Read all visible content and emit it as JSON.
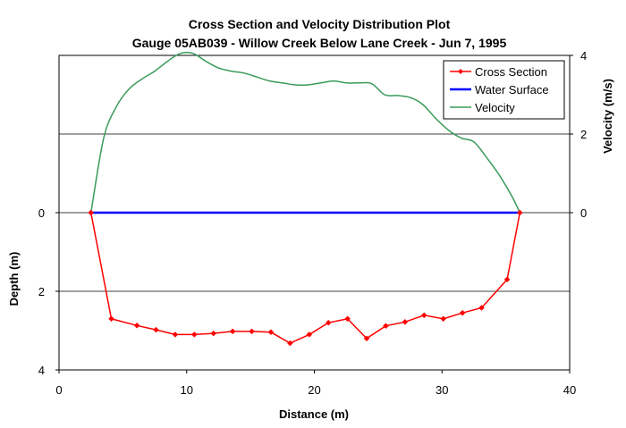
{
  "chart_data": {
    "type": "line",
    "title": "Cross Section and Velocity Distribution Plot",
    "subtitle": "Gauge 05AB039 - Willow Creek Below Lane Creek - Jun 7, 1995",
    "xlabel": "Distance (m)",
    "ylabel_left": "Depth (m)",
    "ylabel_right": "Velocity (m/s)",
    "xlim": [
      0,
      40
    ],
    "x_ticks": [
      "0",
      "10",
      "20",
      "30",
      "40"
    ],
    "depth_ticks": [
      "0",
      "2",
      "4"
    ],
    "velocity_ticks": [
      "4",
      "2",
      "0"
    ],
    "depth_range_at_velocity_zero": [
      0,
      4
    ],
    "velocity_range": [
      0,
      4
    ],
    "grid": true,
    "legend_position": "top-right",
    "series": [
      {
        "name": "Cross Section",
        "color": "#ff0000",
        "axis": "depth",
        "marker": "diamond",
        "x": [
          2.5,
          4.1,
          6.1,
          7.6,
          9.1,
          10.6,
          12.1,
          13.6,
          15.1,
          16.6,
          18.1,
          19.6,
          21.1,
          22.6,
          24.1,
          25.6,
          27.1,
          28.6,
          30.1,
          31.6,
          33.1,
          35.1,
          36.1
        ],
        "y": [
          0,
          2.7,
          2.87,
          2.98,
          3.1,
          3.1,
          3.07,
          3.02,
          3.02,
          3.04,
          3.32,
          3.1,
          2.8,
          2.7,
          3.2,
          2.88,
          2.78,
          2.61,
          2.7,
          2.55,
          2.42,
          1.7,
          0
        ]
      },
      {
        "name": "Water Surface",
        "color": "#0000ff",
        "axis": "depth",
        "x": [
          2.5,
          36.1
        ],
        "y": [
          0,
          0
        ]
      },
      {
        "name": "Velocity",
        "color": "#3a9b5a",
        "axis": "velocity",
        "x": [
          2.5,
          3.5,
          4.5,
          5.5,
          6.5,
          7.5,
          8.5,
          9.5,
          10.5,
          11.5,
          12.5,
          13.5,
          14.5,
          15.5,
          16.5,
          17.5,
          18.5,
          19.5,
          20.5,
          21.5,
          22.5,
          23.5,
          24.5,
          25.5,
          26.5,
          27.5,
          28.5,
          29.5,
          30.5,
          31.5,
          32.5,
          33.5,
          34.5,
          35.5,
          36.1
        ],
        "y": [
          0,
          1.9,
          2.7,
          3.15,
          3.4,
          3.6,
          3.85,
          4.05,
          4.05,
          3.85,
          3.68,
          3.6,
          3.55,
          3.45,
          3.35,
          3.3,
          3.25,
          3.25,
          3.3,
          3.35,
          3.3,
          3.3,
          3.28,
          3.0,
          2.98,
          2.93,
          2.75,
          2.4,
          2.1,
          1.9,
          1.8,
          1.4,
          0.95,
          0.4,
          0
        ]
      }
    ]
  }
}
